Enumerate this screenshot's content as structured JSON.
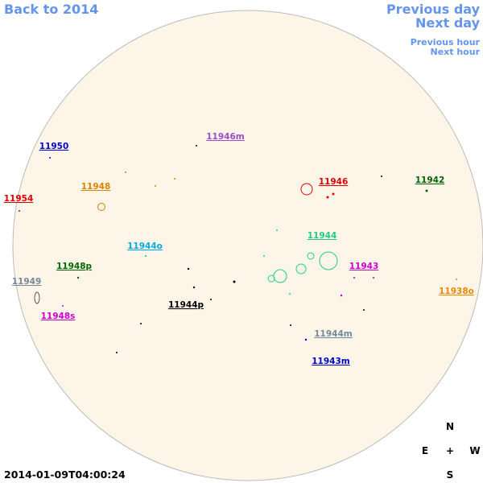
{
  "nav": {
    "back": "Back to 2014",
    "previous_day": "Previous day",
    "next_day": "Next day",
    "previous_hour": "Previous hour",
    "next_hour": "Next hour"
  },
  "regions": [
    {
      "label": "11946m",
      "color": "#9b4dca"
    },
    {
      "label": "11950",
      "color": "#0000cc"
    },
    {
      "label": "11946",
      "color": "#dd0000"
    },
    {
      "label": "11942",
      "color": "#006400"
    },
    {
      "label": "11954",
      "color": "#dd0000"
    },
    {
      "label": "11948",
      "color": "#e08000"
    },
    {
      "label": "11944o",
      "color": "#00aadd"
    },
    {
      "label": "11944",
      "color": "#22cc88"
    },
    {
      "label": "11948p",
      "color": "#006400"
    },
    {
      "label": "11943",
      "color": "#cc00cc"
    },
    {
      "label": "11949",
      "color": "#778899"
    },
    {
      "label": "11938o",
      "color": "#ee8800"
    },
    {
      "label": "11944p",
      "color": "#000000"
    },
    {
      "label": "11948s",
      "color": "#cc00cc"
    },
    {
      "label": "11944m",
      "color": "#778899"
    },
    {
      "label": "11943m",
      "color": "#0000cc"
    }
  ],
  "compass": {
    "north": "N",
    "east": "E",
    "center": "+",
    "west": "W",
    "south": "S"
  },
  "timestamp": "2014-01-09T04:00:24"
}
